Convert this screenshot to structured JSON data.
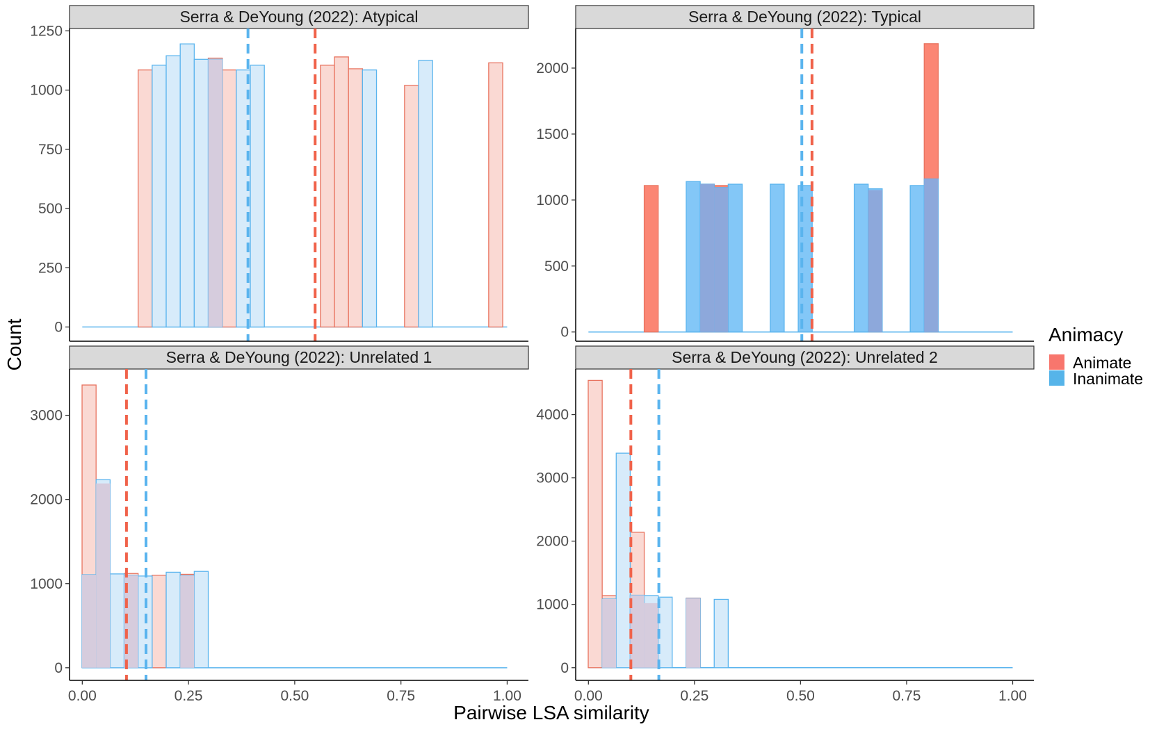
{
  "chart_data": {
    "type": "histogram-facets",
    "xlabel": "Pairwise LSA similarity",
    "ylabel": "Count",
    "x_ticks": [
      0,
      0.25,
      0.5,
      0.75,
      1.0
    ],
    "x_tick_labels": [
      "0.00",
      "0.25",
      "0.50",
      "0.75",
      "1.00"
    ],
    "xlim": [
      -0.03,
      1.05
    ],
    "bin_width": 0.033,
    "legend": {
      "title": "Animacy",
      "entries": [
        {
          "label": "Animate",
          "color": "#F8766D"
        },
        {
          "label": "Inanimate",
          "color": "#56B4E9"
        }
      ]
    },
    "colors": {
      "animate_fill_light": "#FAD9D3",
      "animate_stroke": "#E8735F",
      "animate_fill_dark": "#FB8674",
      "inanimate_fill_light": "#D7EBFA",
      "inanimate_fill_dark": "#83C7F7",
      "inanimate_stroke": "#5AB4EE",
      "animate_line": "#F0624A",
      "inanimate_line": "#5AB4EE",
      "overlap_light": "#D6CCDD",
      "overlap_dark": "#8DA8DB"
    },
    "panels": [
      {
        "title": "Serra & DeYoung (2022): Atypical",
        "style": "light",
        "ylim": [
          -60,
          1260
        ],
        "y_ticks": [
          0,
          250,
          500,
          750,
          1000,
          1250
        ],
        "y_tick_labels": [
          "0",
          "250",
          "500",
          "750",
          "1000",
          "1250"
        ],
        "mean_animate": 0.548,
        "mean_inanimate": 0.39,
        "animate_bins": [
          {
            "x": 0.148,
            "count": 1085
          },
          {
            "x": 0.313,
            "count": 1135
          },
          {
            "x": 0.346,
            "count": 1085
          },
          {
            "x": 0.577,
            "count": 1105
          },
          {
            "x": 0.61,
            "count": 1140
          },
          {
            "x": 0.643,
            "count": 1090
          },
          {
            "x": 0.775,
            "count": 1020
          },
          {
            "x": 0.973,
            "count": 1115
          }
        ],
        "inanimate_bins": [
          {
            "x": 0.181,
            "count": 1105
          },
          {
            "x": 0.214,
            "count": 1145
          },
          {
            "x": 0.247,
            "count": 1195
          },
          {
            "x": 0.28,
            "count": 1130
          },
          {
            "x": 0.313,
            "count": 1130
          },
          {
            "x": 0.379,
            "count": 1085
          },
          {
            "x": 0.412,
            "count": 1105
          },
          {
            "x": 0.676,
            "count": 1085
          },
          {
            "x": 0.808,
            "count": 1125
          }
        ]
      },
      {
        "title": "Serra & DeYoung (2022): Typical",
        "style": "dark",
        "ylim": [
          -70,
          2300
        ],
        "y_ticks": [
          0,
          500,
          1000,
          1500,
          2000
        ],
        "y_tick_labels": [
          "0",
          "500",
          "1000",
          "1500",
          "2000"
        ],
        "mean_animate": 0.527,
        "mean_inanimate": 0.503,
        "animate_bins": [
          {
            "x": 0.148,
            "count": 1110
          },
          {
            "x": 0.28,
            "count": 1120
          },
          {
            "x": 0.313,
            "count": 1110
          },
          {
            "x": 0.676,
            "count": 1075
          },
          {
            "x": 0.808,
            "count": 2185
          }
        ],
        "inanimate_bins": [
          {
            "x": 0.247,
            "count": 1140
          },
          {
            "x": 0.28,
            "count": 1120
          },
          {
            "x": 0.313,
            "count": 1095
          },
          {
            "x": 0.346,
            "count": 1120
          },
          {
            "x": 0.445,
            "count": 1120
          },
          {
            "x": 0.511,
            "count": 1110
          },
          {
            "x": 0.643,
            "count": 1120
          },
          {
            "x": 0.676,
            "count": 1085
          },
          {
            "x": 0.775,
            "count": 1110
          },
          {
            "x": 0.808,
            "count": 1160
          }
        ]
      },
      {
        "title": "Serra & DeYoung (2022): Unrelated 1",
        "style": "light",
        "ylim": [
          -150,
          3550
        ],
        "y_ticks": [
          0,
          1000,
          2000,
          3000
        ],
        "y_tick_labels": [
          "0",
          "1000",
          "2000",
          "3000"
        ],
        "mean_animate": 0.104,
        "mean_inanimate": 0.15,
        "animate_bins": [
          {
            "x": 0.016,
            "count": 3360
          },
          {
            "x": 0.049,
            "count": 2190
          },
          {
            "x": 0.115,
            "count": 1120
          },
          {
            "x": 0.181,
            "count": 1100
          },
          {
            "x": 0.247,
            "count": 1110
          }
        ],
        "inanimate_bins": [
          {
            "x": 0.016,
            "count": 1105
          },
          {
            "x": 0.049,
            "count": 2235
          },
          {
            "x": 0.082,
            "count": 1115
          },
          {
            "x": 0.115,
            "count": 1100
          },
          {
            "x": 0.148,
            "count": 1090
          },
          {
            "x": 0.214,
            "count": 1135
          },
          {
            "x": 0.247,
            "count": 1095
          },
          {
            "x": 0.28,
            "count": 1145
          }
        ]
      },
      {
        "title": "Serra & DeYoung (2022): Unrelated 2",
        "style": "light",
        "ylim": [
          -200,
          4720
        ],
        "y_ticks": [
          0,
          1000,
          2000,
          3000,
          4000
        ],
        "y_tick_labels": [
          "0",
          "1000",
          "2000",
          "3000",
          "4000"
        ],
        "mean_animate": 0.1,
        "mean_inanimate": 0.166,
        "animate_bins": [
          {
            "x": 0.016,
            "count": 4540
          },
          {
            "x": 0.049,
            "count": 1140
          },
          {
            "x": 0.115,
            "count": 2140
          },
          {
            "x": 0.148,
            "count": 1020
          },
          {
            "x": 0.247,
            "count": 1100
          }
        ],
        "inanimate_bins": [
          {
            "x": 0.049,
            "count": 1085
          },
          {
            "x": 0.082,
            "count": 3390
          },
          {
            "x": 0.115,
            "count": 1145
          },
          {
            "x": 0.148,
            "count": 1140
          },
          {
            "x": 0.181,
            "count": 1115
          },
          {
            "x": 0.247,
            "count": 1095
          },
          {
            "x": 0.313,
            "count": 1080
          }
        ]
      }
    ]
  }
}
